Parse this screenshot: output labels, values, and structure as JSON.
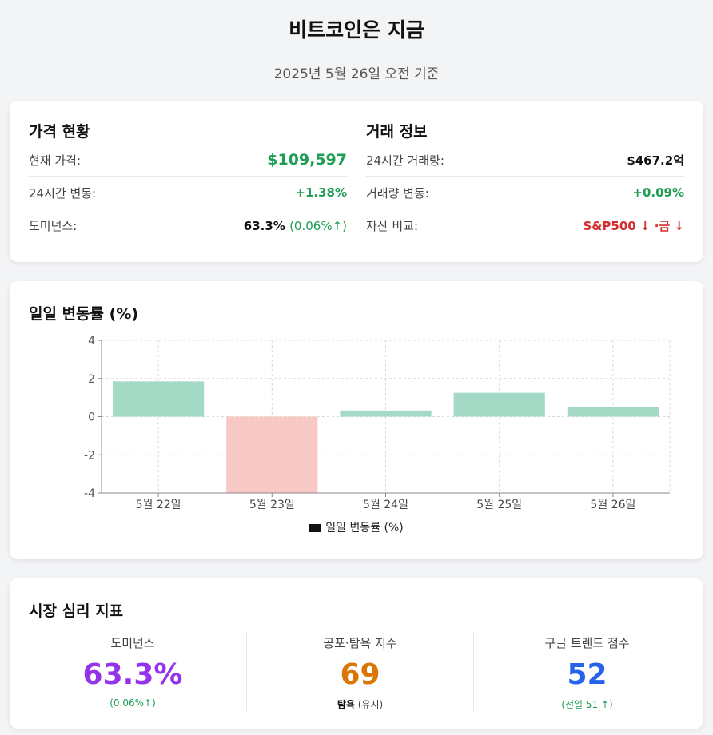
{
  "header": {
    "title": "비트코인은 지금",
    "subtitle": "2025년 5월 26일 오전 기준"
  },
  "price": {
    "heading": "가격 현황",
    "rows": [
      {
        "label": "현재 가격:",
        "value": "$109,597"
      },
      {
        "label": "24시간 변동:",
        "value": "+1.38%"
      },
      {
        "label": "도미넌스:",
        "value": "63.3%",
        "sub": "(0.06%↑)"
      }
    ]
  },
  "trade": {
    "heading": "거래 정보",
    "rows": [
      {
        "label": "24시간 거래량:",
        "value": "$467.2억"
      },
      {
        "label": "거래량 변동:",
        "value": "+0.09%"
      },
      {
        "label": "자산 비교:",
        "value": "S&P500 ↓ ·금 ↓"
      }
    ]
  },
  "chart_data": {
    "type": "bar",
    "title": "일일 변동률 (%)",
    "categories": [
      "5월 22일",
      "5월 23일",
      "5월 24일",
      "5월 25일",
      "5월 26일"
    ],
    "series": [
      {
        "name": "일일 변동률 (%)",
        "values": [
          1.85,
          -4.0,
          0.32,
          1.25,
          0.52
        ]
      }
    ],
    "ylim": [
      -4,
      4
    ],
    "yticks": [
      -4,
      -2,
      0,
      2,
      4
    ],
    "grid": true,
    "legend": "bottom",
    "colors": {
      "positive": "#a3d9c5",
      "negative": "#f8c8c4",
      "grid": "#d9d9d9",
      "axis": "#888888"
    }
  },
  "sentiment": {
    "heading": "시장 심리 지표",
    "items": [
      {
        "label": "도미넌스",
        "value": "63.3%",
        "sub": "(0.06%↑)"
      },
      {
        "label": "공포·탐욕 지수",
        "value": "69",
        "sub_strong": "탐욕",
        "sub_rest": "(유지)"
      },
      {
        "label": "구글 트렌드 점수",
        "value": "52",
        "sub": "(전일 51 ↑)"
      }
    ]
  }
}
